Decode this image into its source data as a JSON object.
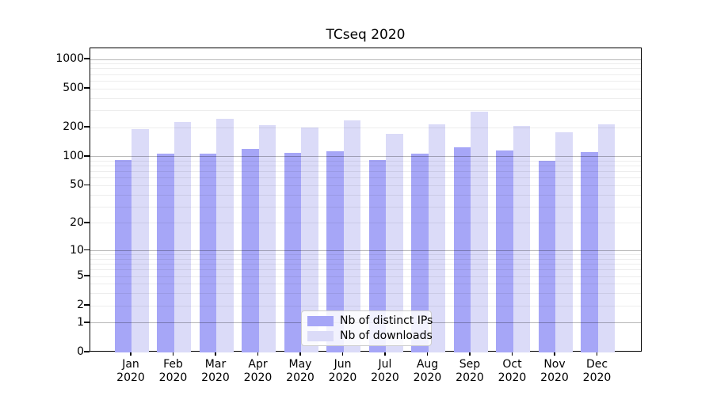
{
  "figure": {
    "title": "TCseq 2020"
  },
  "chart_data": {
    "type": "bar",
    "title": "TCseq 2020",
    "categories": [
      "Jan 2020",
      "Feb 2020",
      "Mar 2020",
      "Apr 2020",
      "May 2020",
      "Jun 2020",
      "Jul 2020",
      "Aug 2020",
      "Sep 2020",
      "Oct 2020",
      "Nov 2020",
      "Dec 2020"
    ],
    "months": [
      "Jan",
      "Feb",
      "Mar",
      "Apr",
      "May",
      "Jun",
      "Jul",
      "Aug",
      "Sep",
      "Oct",
      "Nov",
      "Dec"
    ],
    "year": "2020",
    "series": [
      {
        "name": "Nb of distinct IPs",
        "color": "#a6a6f7",
        "values": [
          93,
          107,
          108,
          120,
          109,
          114,
          92,
          107,
          126,
          115,
          90,
          111
        ]
      },
      {
        "name": "Nb of downloads",
        "color": "#dbdbf8",
        "values": [
          191,
          228,
          245,
          212,
          201,
          236,
          171,
          214,
          290,
          209,
          178,
          216
        ]
      }
    ],
    "xlabel": "",
    "ylabel": "",
    "y_scale": "log1p",
    "ylim": [
      0,
      1300
    ],
    "y_ticks": [
      0,
      1,
      2,
      5,
      10,
      20,
      50,
      100,
      200,
      500,
      1000
    ],
    "y_major_gridlines": [
      1,
      10,
      100,
      1000
    ],
    "y_minor_gridlines": [
      2,
      3,
      4,
      5,
      6,
      7,
      8,
      9,
      20,
      30,
      40,
      50,
      60,
      70,
      80,
      90,
      200,
      300,
      400,
      500,
      600,
      700,
      800,
      900
    ],
    "grid": true,
    "legend_position": "lower center",
    "colors": {
      "spine": "#000000",
      "major_grid": "#b5b5b5",
      "minor_grid": "#ededed",
      "background": "#ffffff"
    }
  }
}
